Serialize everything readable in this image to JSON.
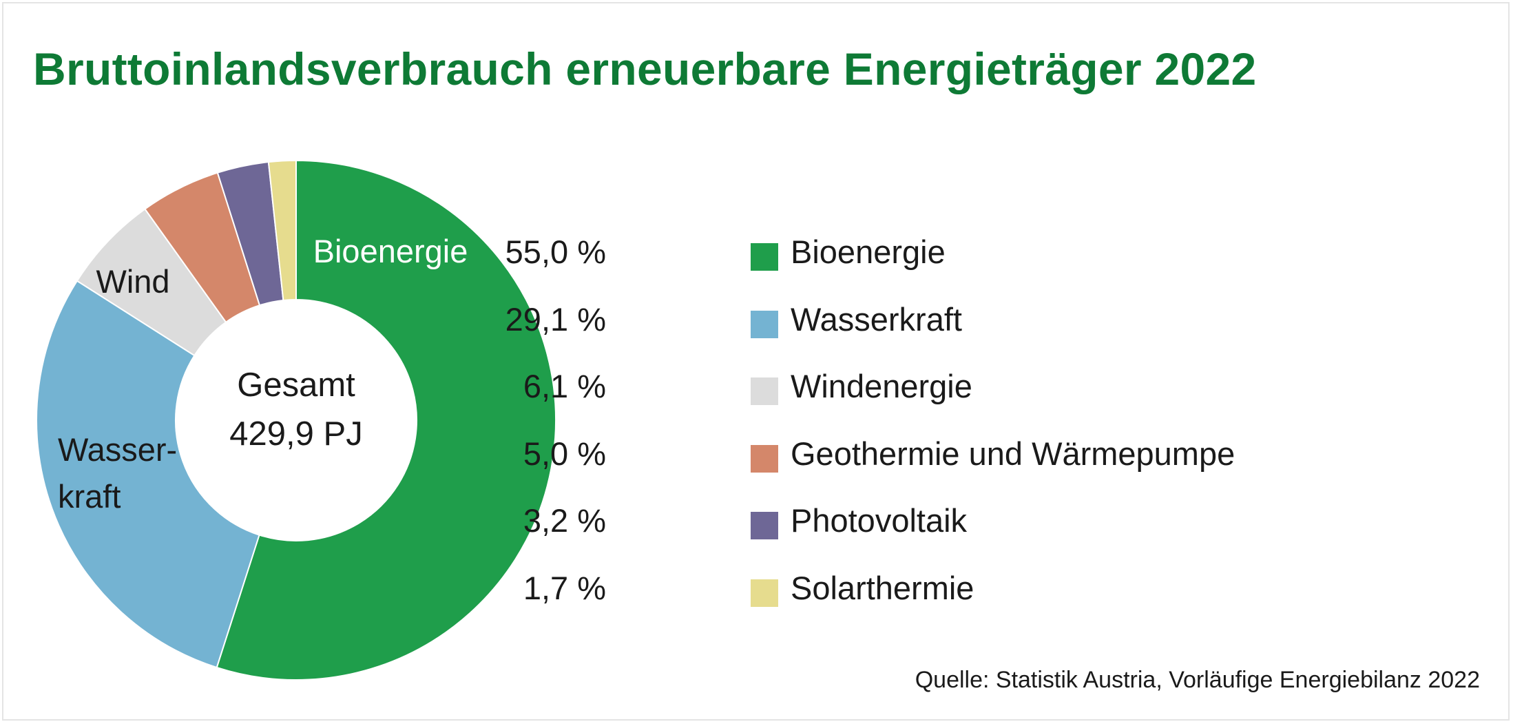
{
  "title": "Bruttoinlandsverbrauch erneuerbare Energieträger 2022",
  "source": "Quelle: Statistik Austria, Vorläufige Energiebilanz 2022",
  "center": {
    "line1": "Gesamt",
    "line2": "429,9 PJ"
  },
  "chart_labels": {
    "bio": "Bioenergie",
    "wind": "Wind",
    "wasser_line1": "Wasser-",
    "wasser_line2": "kraft"
  },
  "legend": [
    {
      "pct": "55,0 %",
      "name": "Bioenergie"
    },
    {
      "pct": "29,1 %",
      "name": "Wasserkraft"
    },
    {
      "pct": "6,1 %",
      "name": "Windenergie"
    },
    {
      "pct": "5,0 %",
      "name": "Geothermie und Wärmepumpe"
    },
    {
      "pct": "3,2 %",
      "name": "Photovoltaik"
    },
    {
      "pct": "1,7 %",
      "name": "Solarthermie"
    }
  ],
  "chart_data": {
    "type": "pie",
    "title": "Bruttoinlandsverbrauch erneuerbare Energieträger 2022",
    "total": "429,9 PJ",
    "unit": "%",
    "start": "top, clockwise",
    "slices": [
      {
        "name": "Bioenergie",
        "value": 55.0,
        "color": "#1f9e4b"
      },
      {
        "name": "Wasserkraft",
        "value": 29.1,
        "color": "#74b3d2"
      },
      {
        "name": "Windenergie",
        "value": 6.1,
        "color": "#dcdcdc"
      },
      {
        "name": "Geothermie und Wärmepumpe",
        "value": 5.0,
        "color": "#d4876a"
      },
      {
        "name": "Photovoltaik",
        "value": 3.2,
        "color": "#6e6796"
      },
      {
        "name": "Solarthermie",
        "value": 1.7,
        "color": "#e6dc8e"
      }
    ]
  }
}
